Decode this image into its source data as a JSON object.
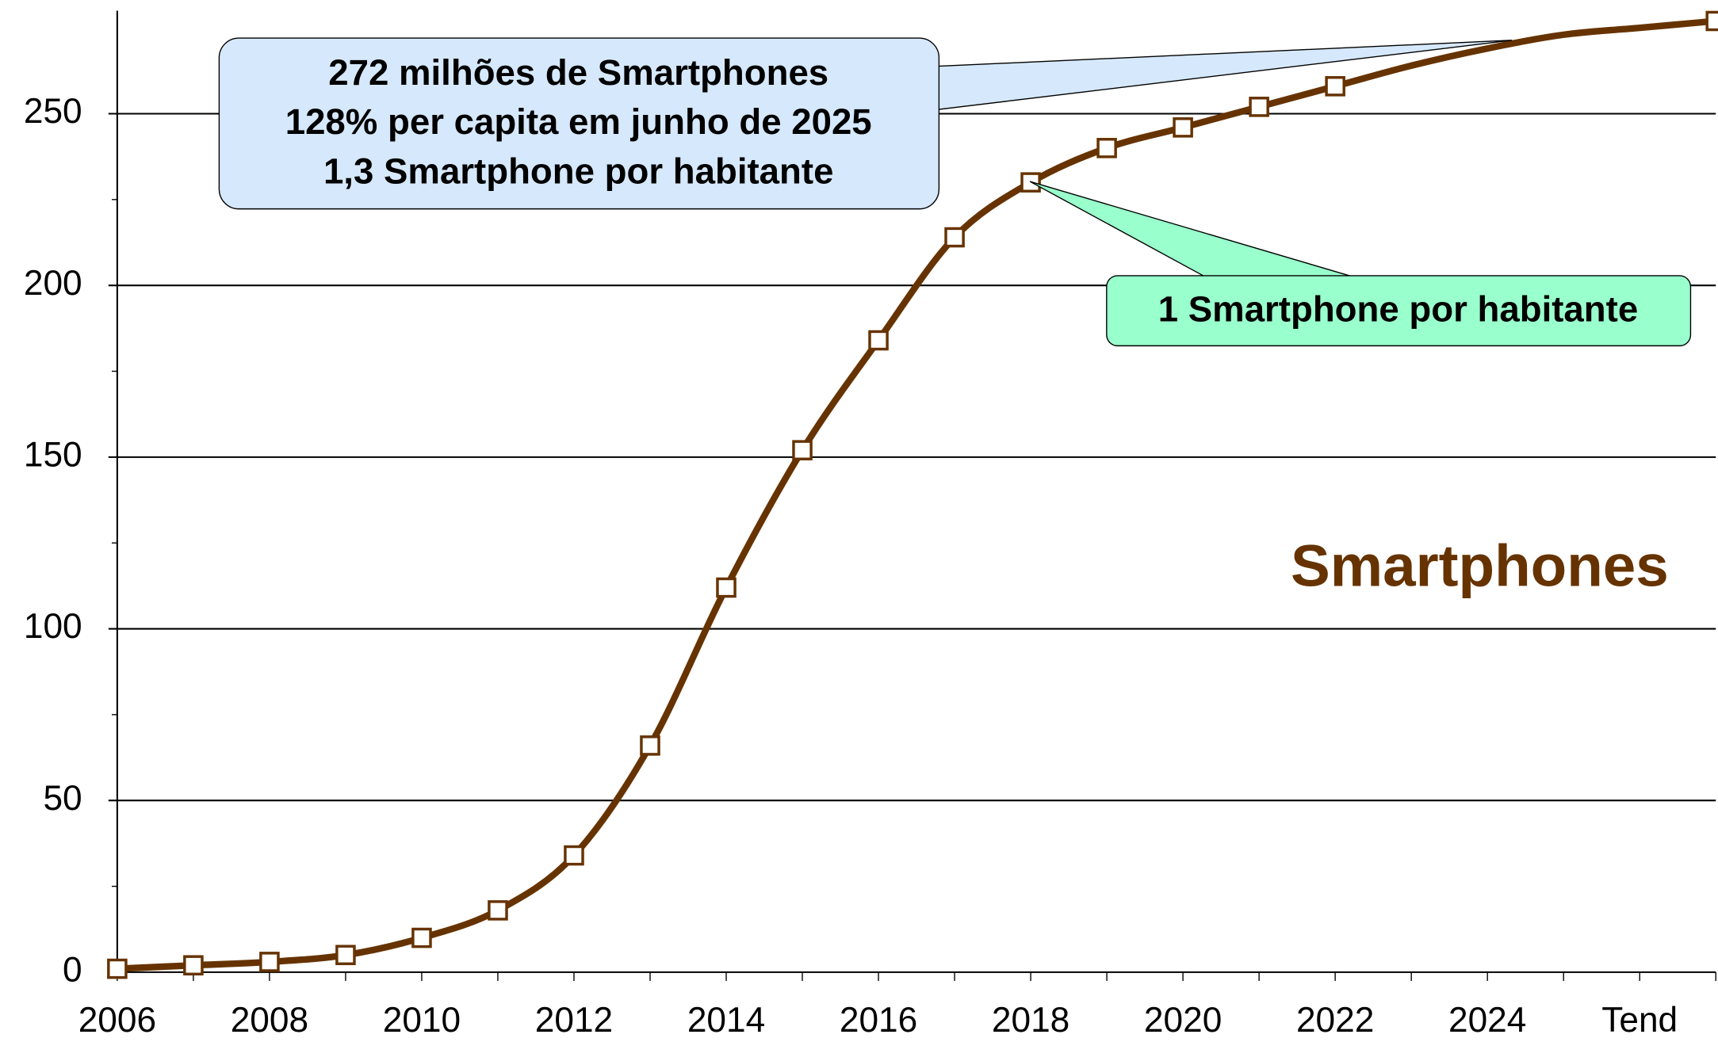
{
  "chart_data": {
    "type": "line",
    "categories": [
      "2006",
      null,
      "2008",
      null,
      "2010",
      null,
      "2012",
      null,
      "2014",
      null,
      "2016",
      null,
      "2018",
      null,
      "2020",
      null,
      "2022",
      null,
      "2024",
      null,
      "Tend",
      null
    ],
    "series": [
      {
        "name": "Smartphones",
        "color": "#663300",
        "values": [
          1,
          2,
          3,
          5,
          10,
          18,
          34,
          66,
          112,
          152,
          184,
          214,
          230,
          240,
          246,
          252,
          258,
          264,
          269,
          273,
          275,
          277
        ],
        "markers": [
          true,
          true,
          true,
          true,
          true,
          true,
          true,
          true,
          true,
          true,
          true,
          true,
          true,
          true,
          true,
          true,
          true,
          false,
          false,
          false,
          false,
          true
        ]
      }
    ],
    "ylim": [
      0,
      280
    ],
    "yticks": [
      0,
      50,
      100,
      150,
      200,
      250
    ],
    "grid": true,
    "annotations": [
      {
        "lines": [
          "272 milhões de Smartphones",
          "128% per capita em junho de 2025",
          "1,3 Smartphone por habitante"
        ]
      },
      {
        "lines": [
          "1 Smartphone por habitante"
        ]
      }
    ]
  }
}
